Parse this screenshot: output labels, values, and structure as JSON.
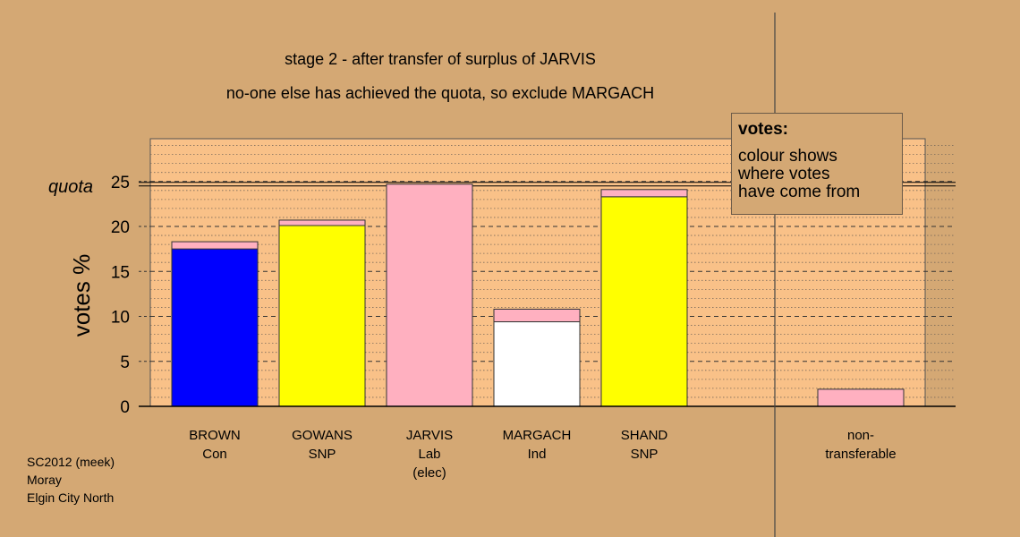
{
  "title_line1": "stage 2 - after transfer of surplus of JARVIS",
  "title_line2": "no-one else has achieved the quota, so exclude MARGACH",
  "ylabel": "votes %",
  "quota_label": "quota",
  "legend": {
    "title": "votes:",
    "lines": [
      "colour shows",
      "where votes",
      "have come from"
    ]
  },
  "footer": [
    "SC2012 (meek)",
    "Moray",
    "Elgin City North"
  ],
  "colors": {
    "background": "#d4a874",
    "plot_bg": "#f9c188",
    "transfer": "#ffb0c0",
    "Con": "#0000ff",
    "SNP": "#ffff00",
    "Ind": "#ffffff",
    "Lab": "#ffb0c0"
  },
  "chart_data": {
    "type": "bar",
    "stacked": true,
    "categories": [
      {
        "name": "BROWN",
        "party": "Con",
        "note": ""
      },
      {
        "name": "GOWANS",
        "party": "SNP",
        "note": ""
      },
      {
        "name": "JARVIS",
        "party": "Lab",
        "note": "(elec)"
      },
      {
        "name": "MARGACH",
        "party": "Ind",
        "note": ""
      },
      {
        "name": "SHAND",
        "party": "SNP",
        "note": ""
      },
      {
        "name": "non-",
        "party": "transferable",
        "note": ""
      }
    ],
    "series": [
      {
        "colorKey": "own",
        "values": [
          17.5,
          20.1,
          24.7,
          9.4,
          23.3,
          0
        ]
      },
      {
        "colorKey": "transfer",
        "values": [
          0.8,
          0.6,
          0,
          1.4,
          0.8,
          1.9
        ]
      }
    ],
    "quota": 24.7,
    "ylim": [
      0,
      30
    ],
    "yticks": [
      0,
      5,
      10,
      15,
      20,
      25
    ],
    "grid": true
  }
}
